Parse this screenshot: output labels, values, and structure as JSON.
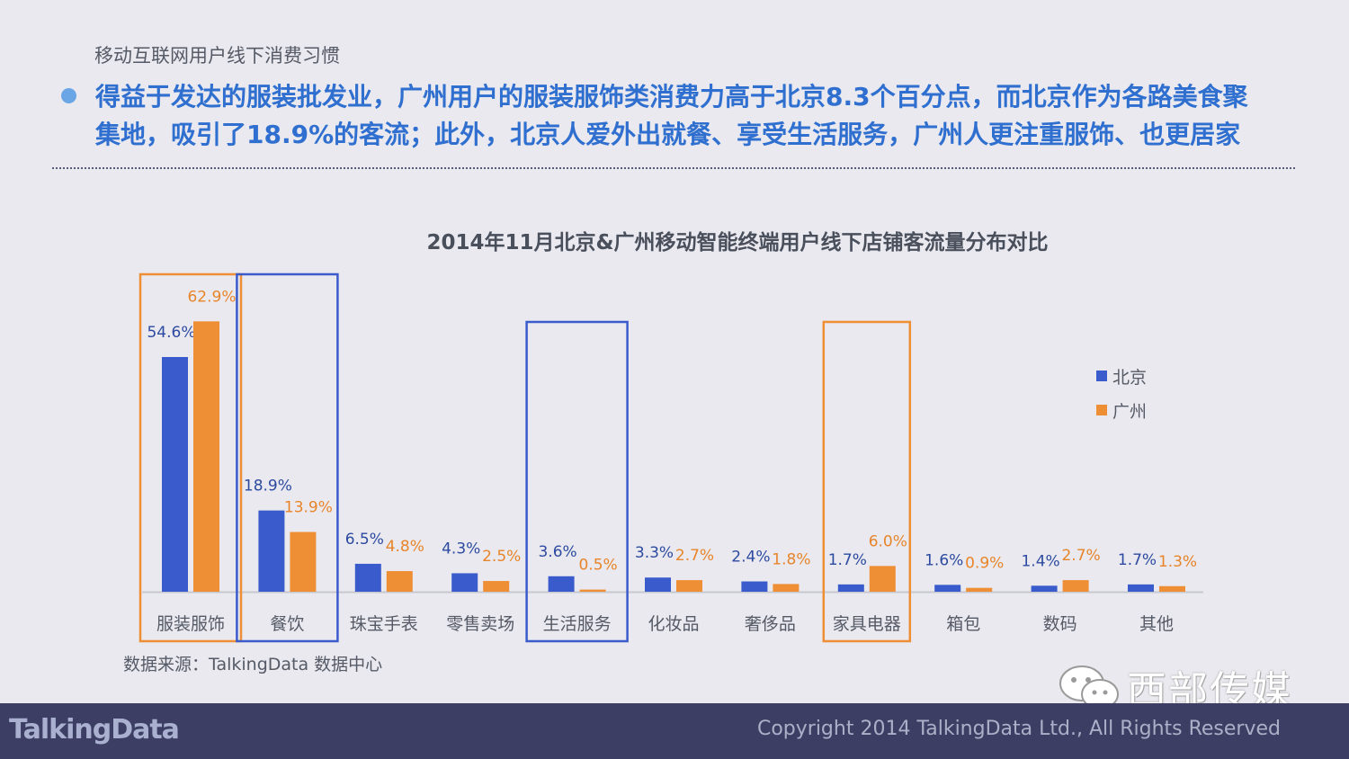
{
  "header": {
    "section_label": "移动互联网用户线下消费习惯",
    "headline_line1": "得益于发达的服装批发业，广州用户的服装服饰类消费力高于北京8.3个百分点，而北京作为各路美食聚",
    "headline_line2": "集地，吸引了18.9%的客流；此外，北京人爱外出就餐、享受生活服务，广州人更注重服饰、也更居家"
  },
  "chart_data": {
    "type": "bar",
    "title": "2014年11月北京&广州移动智能终端用户线下店铺客流量分布对比",
    "categories": [
      "服装服饰",
      "餐饮",
      "珠宝手表",
      "零售卖场",
      "生活服务",
      "化妆品",
      "奢侈品",
      "家具电器",
      "箱包",
      "数码",
      "其他"
    ],
    "series": [
      {
        "name": "北京",
        "color": "#3a5bcc",
        "values": [
          54.6,
          18.9,
          6.5,
          4.3,
          3.6,
          3.3,
          2.4,
          1.7,
          1.6,
          1.4,
          1.7
        ],
        "labels": [
          "54.6%",
          "18.9%",
          "6.5%",
          "4.3%",
          "3.6%",
          "3.3%",
          "2.4%",
          "1.7%",
          "1.6%",
          "1.4%",
          "1.7%"
        ]
      },
      {
        "name": "广州",
        "color": "#ef8f35",
        "values": [
          62.9,
          13.9,
          4.8,
          2.5,
          0.5,
          2.7,
          1.8,
          6.0,
          0.9,
          2.7,
          1.3
        ],
        "labels": [
          "62.9%",
          "13.9%",
          "4.8%",
          "2.5%",
          "0.5%",
          "2.7%",
          "1.8%",
          "6.0%",
          "0.9%",
          "2.7%",
          "1.3%"
        ]
      }
    ],
    "highlights": [
      {
        "category": "服装服饰",
        "color": "#ef8f35"
      },
      {
        "category": "餐饮",
        "color": "#3a5bcc"
      },
      {
        "category": "生活服务",
        "color": "#3a5bcc"
      },
      {
        "category": "家具电器",
        "color": "#ef8f35"
      }
    ],
    "legend_position": "right",
    "ylim": [
      0,
      70
    ],
    "grid": false
  },
  "source": "数据来源：TalkingData 数据中心",
  "footer": {
    "logo_text": "TalkingData",
    "copyright": "Copyright 2014 TalkingData Ltd., All Rights Reserved"
  },
  "watermark": {
    "text": "西部传媒",
    "icon": "wechat-icon"
  }
}
